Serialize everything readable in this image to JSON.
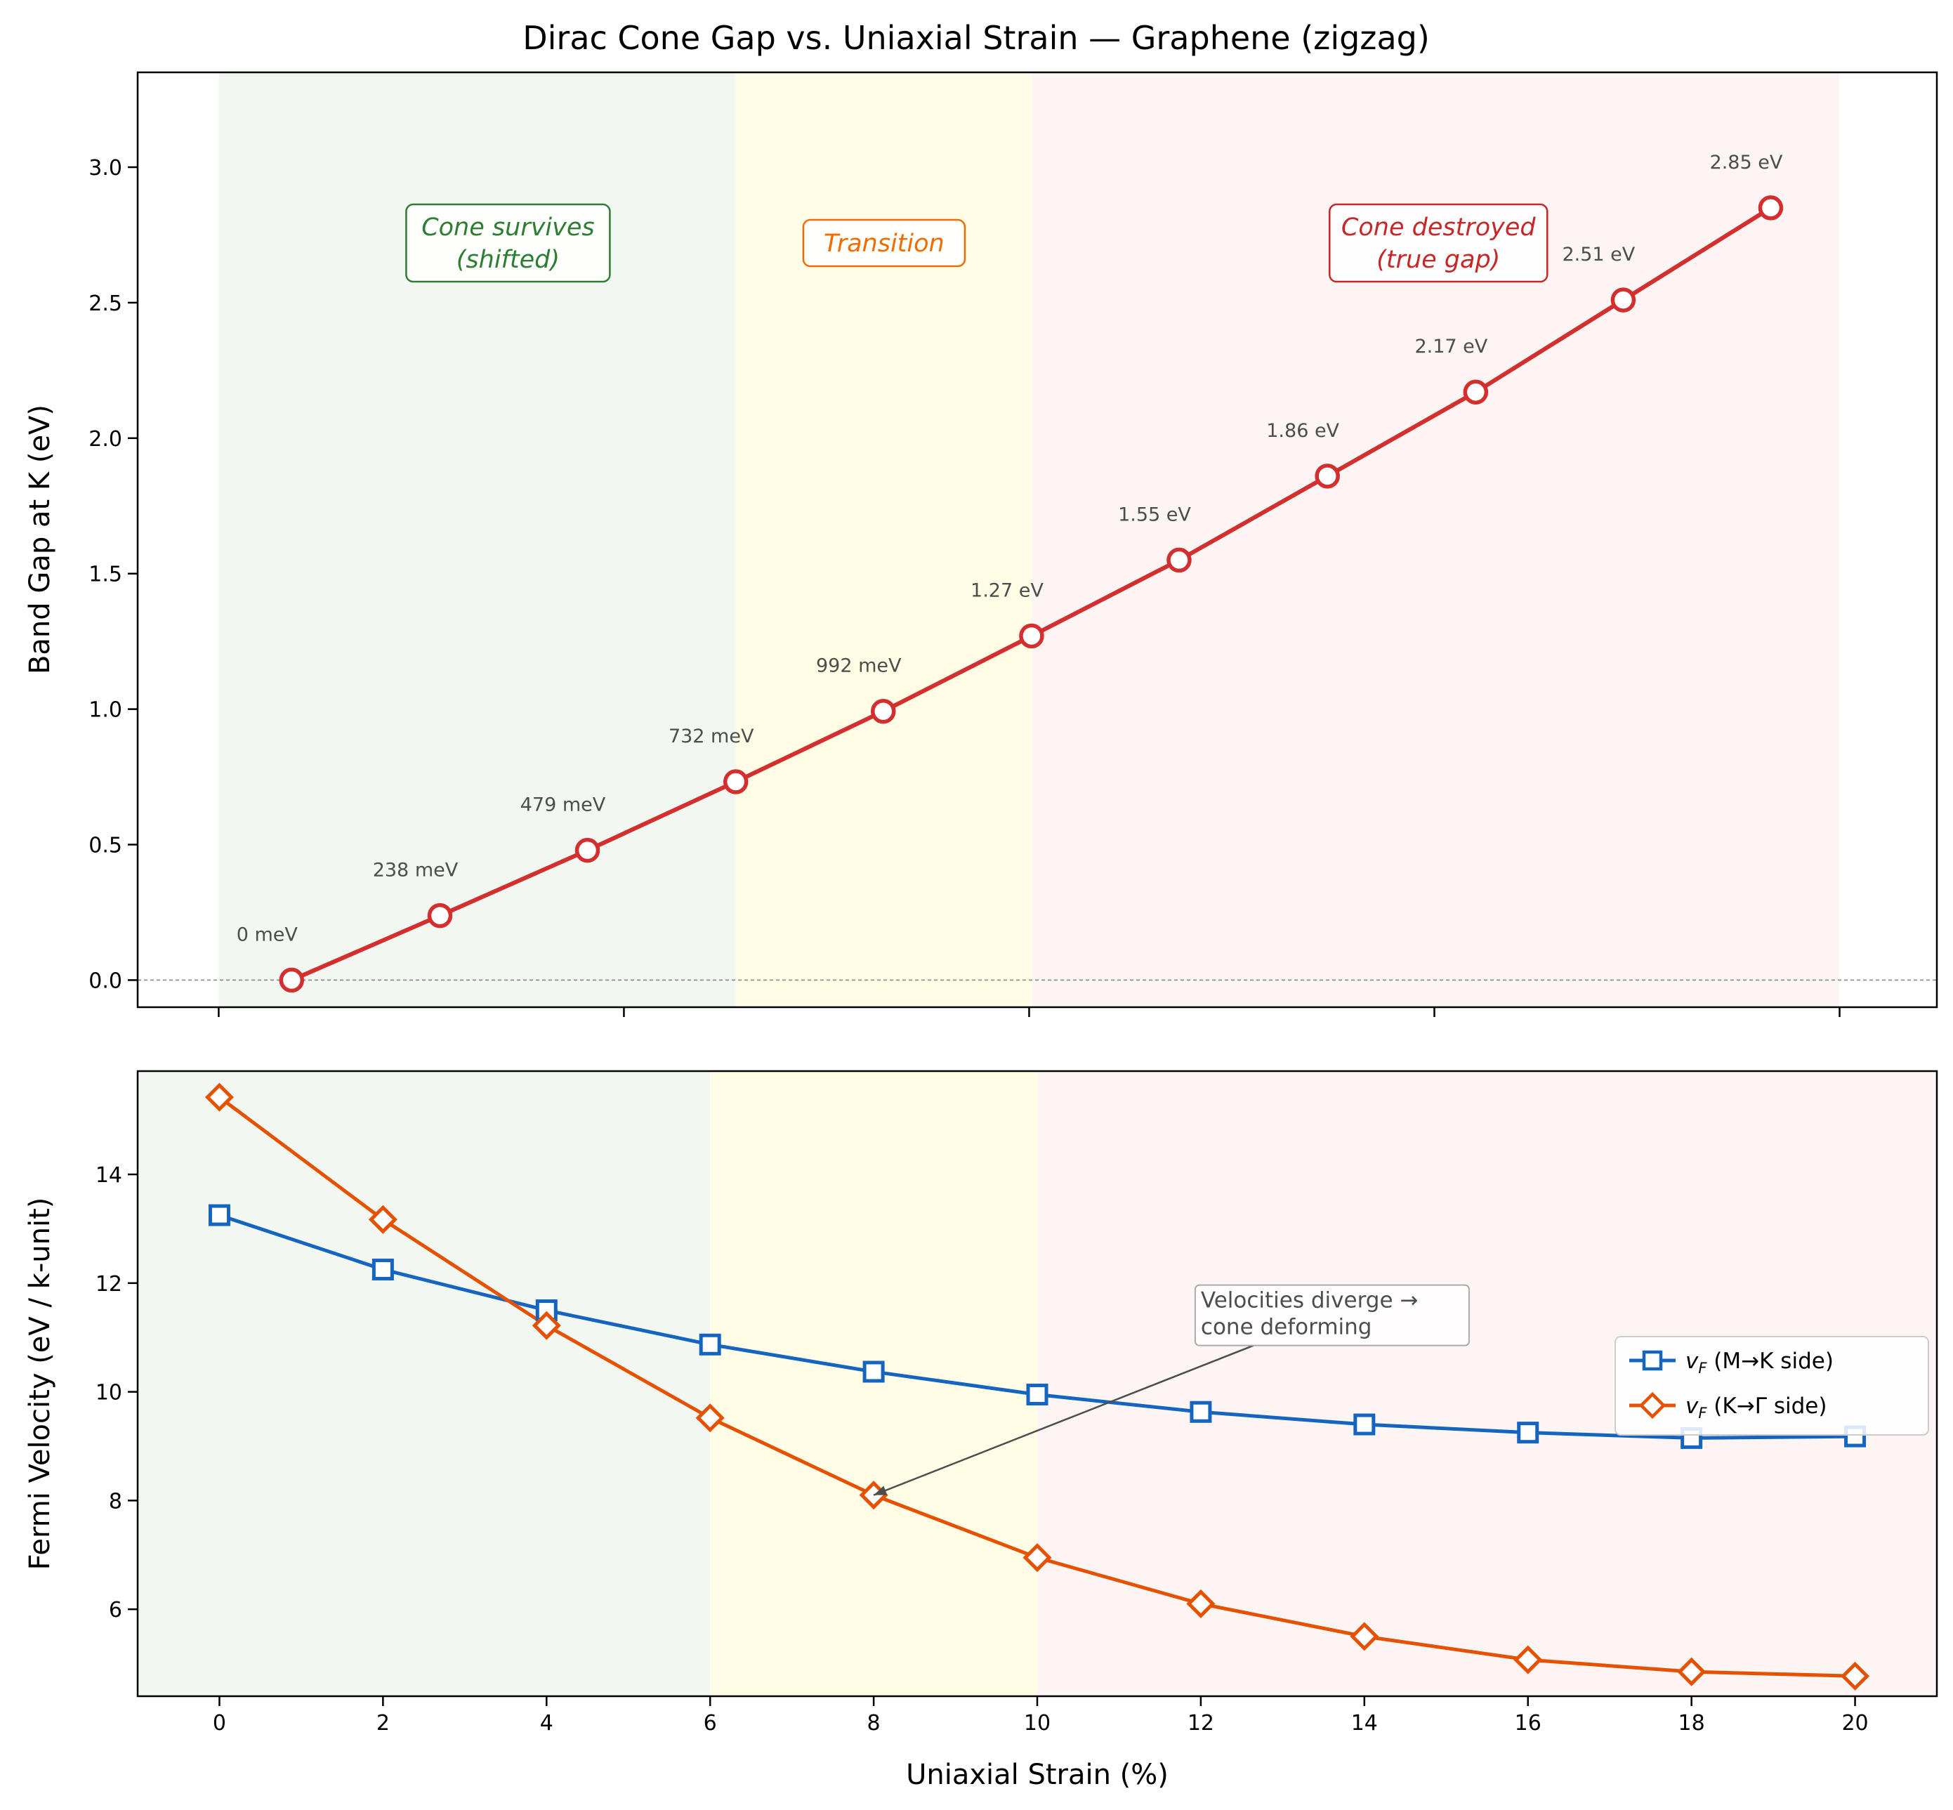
{
  "title": "Dirac Cone Gap vs. Uniaxial Strain — Graphene (zigzag)",
  "xlabel": "Uniaxial Strain (%)",
  "colors": {
    "gap": "#d32f2f",
    "vf_mk": "#1565c0",
    "vf_kg": "#e65100",
    "region_survive": "#f3f7f2",
    "region_transition": "#fffde6",
    "region_destroyed": "#fdf4f4"
  },
  "chart_data": [
    {
      "type": "line",
      "ylabel": "Band Gap at K (eV)",
      "xlim": [
        -1,
        21.2
      ],
      "ylim": [
        -0.1,
        3.35
      ],
      "x": [
        0.9,
        2.73,
        4.55,
        6.38,
        8.2,
        10.03,
        11.85,
        13.68,
        15.51,
        17.33,
        19.15
      ],
      "xticks": [
        0,
        5,
        10,
        15,
        20
      ],
      "xticks_shown_labels": false,
      "yticks": [
        "0.0",
        "0.5",
        "1.0",
        "1.5",
        "2.0",
        "2.5",
        "3.0"
      ],
      "series": [
        {
          "values": [
            0,
            0.238,
            0.479,
            0.732,
            0.992,
            1.27,
            1.55,
            1.86,
            2.17,
            2.51,
            2.85
          ],
          "labels": [
            "0 meV",
            "238 meV",
            "479 meV",
            "732 meV",
            "992 meV",
            "1.27 eV",
            "1.55 eV",
            "1.86 eV",
            "2.17 eV",
            "2.51 eV",
            "2.85 eV"
          ],
          "marker": "circle"
        }
      ],
      "regions": [
        {
          "x0": 0,
          "x1": 6.38,
          "label_line1": "Cone survives",
          "label_line2": "(shifted)",
          "color": "#2e7d32"
        },
        {
          "x0": 6.38,
          "x1": 10.03,
          "label_line1": "Transition",
          "label_line2": "",
          "color": "#ef6c00"
        },
        {
          "x0": 10.03,
          "x1": 20.0,
          "label_line1": "Cone destroyed",
          "label_line2": "(true gap)",
          "color": "#c62828"
        }
      ],
      "hline": 0,
      "grid": false
    },
    {
      "type": "line",
      "ylabel": "Fermi Velocity (eV / k-unit)",
      "xlim": [
        -1,
        21
      ],
      "ylim": [
        4.4,
        15.9
      ],
      "x": [
        0,
        2,
        4,
        6,
        8,
        10,
        12,
        14,
        16,
        18,
        20
      ],
      "xticks": [
        "0",
        "2",
        "4",
        "6",
        "8",
        "10",
        "12",
        "14",
        "16",
        "18",
        "20"
      ],
      "yticks": [
        "6",
        "8",
        "10",
        "12",
        "14"
      ],
      "series": [
        {
          "name": "v_F (M→K side)",
          "legend_sub": "F",
          "legend_text": " (M→K side)",
          "values": [
            13.25,
            12.25,
            11.5,
            10.87,
            10.37,
            9.95,
            9.63,
            9.4,
            9.25,
            9.15,
            9.18
          ],
          "marker": "square"
        },
        {
          "name": "v_F (K→Γ side)",
          "legend_sub": "F",
          "legend_text": " (K→Γ side)",
          "values": [
            15.42,
            13.17,
            11.22,
            9.52,
            8.1,
            6.95,
            6.1,
            5.5,
            5.07,
            4.85,
            4.77
          ],
          "marker": "diamond"
        }
      ],
      "regions": [
        {
          "x0": -1,
          "x1": 6
        },
        {
          "x0": 6,
          "x1": 10
        },
        {
          "x0": 10,
          "x1": 21
        }
      ],
      "annotation": {
        "line1": "Velocities diverge →",
        "line2": "cone deforming",
        "text_x": 12.0,
        "text_y": 11.55,
        "arrow_x": 8.0,
        "arrow_y": 8.1
      },
      "legend": "center-right",
      "grid": false
    }
  ]
}
